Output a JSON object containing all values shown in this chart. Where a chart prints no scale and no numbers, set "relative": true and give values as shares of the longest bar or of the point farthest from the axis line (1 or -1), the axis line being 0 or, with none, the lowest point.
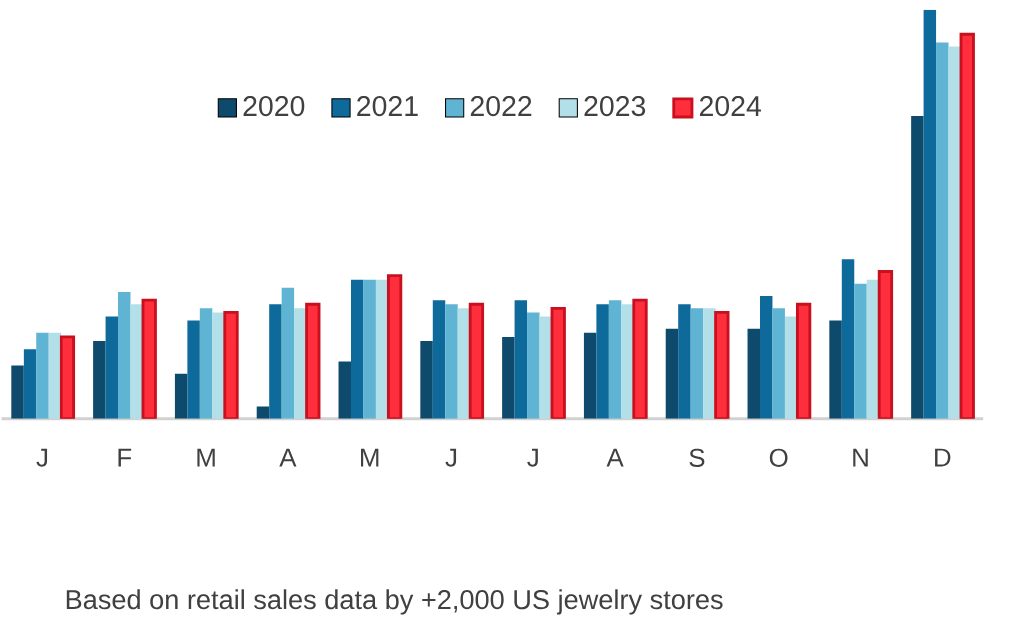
{
  "chart_data": {
    "type": "bar",
    "relative": true,
    "legend": "top",
    "categories": [
      "J",
      "F",
      "M",
      "A",
      "M",
      "J",
      "J",
      "A",
      "S",
      "O",
      "N",
      "D"
    ],
    "series": [
      {
        "name": "2020",
        "color": "#0d4a6b",
        "values": [
          0.13,
          0.19,
          0.11,
          0.03,
          0.14,
          0.19,
          0.2,
          0.21,
          0.22,
          0.22,
          0.24,
          0.74
        ]
      },
      {
        "name": "2021",
        "color": "#0e6a9a",
        "values": [
          0.17,
          0.25,
          0.24,
          0.28,
          0.34,
          0.29,
          0.29,
          0.28,
          0.28,
          0.3,
          0.39,
          1
        ]
      },
      {
        "name": "2022",
        "color": "#5fb3d3",
        "values": [
          0.21,
          0.31,
          0.27,
          0.32,
          0.34,
          0.28,
          0.26,
          0.29,
          0.27,
          0.27,
          0.33,
          0.92
        ]
      },
      {
        "name": "2023",
        "color": "#b3dfe9",
        "values": [
          0.21,
          0.28,
          0.26,
          0.27,
          0.34,
          0.27,
          0.25,
          0.28,
          0.27,
          0.25,
          0.34,
          0.91
        ]
      },
      {
        "name": "2024",
        "color": "#ff2e3c",
        "values": [
          0.2,
          0.29,
          0.26,
          0.28,
          0.35,
          0.28,
          0.27,
          0.29,
          0.26,
          0.28,
          0.36,
          0.94
        ]
      }
    ],
    "annotations": [
      "Based on retail sales data by +2,000 US jewelry stores"
    ]
  }
}
